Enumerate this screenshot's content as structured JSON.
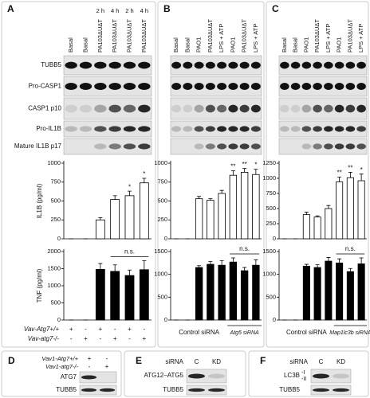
{
  "panels": [
    {
      "label": "A",
      "lanes": [
        "Basal",
        "Basal",
        "PA103ΔUΔT",
        "PA103ΔUΔT",
        "PA103ΔUΔT",
        "PA103ΔUΔT"
      ],
      "times": [
        null,
        null,
        "2 h",
        "4 h",
        "2 h",
        "4 h"
      ],
      "blots": [
        "TUBB5",
        "Pro-CASP1",
        "CASP1 p10",
        "Pro-IL1B",
        "Mature IL1B p17"
      ],
      "genotype": [
        {
          "name": "Vav-Atg7+/+",
          "marks": [
            "+",
            "-",
            "+",
            "-",
            "+",
            "-"
          ]
        },
        {
          "name": "Vav-atg7-/-",
          "marks": [
            "-",
            "+",
            "-",
            "+",
            "-",
            "+"
          ]
        }
      ]
    },
    {
      "label": "B",
      "lanes": [
        "Basal",
        "Basal",
        "PAO1",
        "PA103ΔUΔT",
        "LPS + ATP",
        "PAO1",
        "PA103ΔUΔT",
        "LPS + ATP"
      ],
      "groups": [
        "Control siRNA",
        "Atg5 siRNA"
      ]
    },
    {
      "label": "C",
      "lanes": [
        "Basal",
        "Basal",
        "PAO1",
        "PA103ΔUΔT",
        "LPS + ATP",
        "PAO1",
        "PA103ΔUΔT",
        "LPS + ATP"
      ],
      "groups": [
        "Control siRNA",
        "Map1lc3b siRNA"
      ]
    },
    {
      "label": "D",
      "genotype": [
        {
          "name": "Vav1-Atg7+/+",
          "marks": [
            "+",
            "-"
          ]
        },
        {
          "name": "Vav1-atg7-/-",
          "marks": [
            "-",
            "+"
          ]
        }
      ],
      "blots": [
        "ATG7",
        "TUBB5"
      ]
    },
    {
      "label": "E",
      "header": "siRNA",
      "lanes": [
        "C",
        "KD"
      ],
      "blots": [
        "ATG12–ATG5",
        "TUBB5"
      ]
    },
    {
      "label": "F",
      "header": "siRNA",
      "lanes": [
        "C",
        "KD"
      ],
      "blots": [
        "LC3B",
        "TUBB5"
      ],
      "bands": [
        "-I",
        "-II"
      ]
    }
  ],
  "chart_data": [
    {
      "type": "bar",
      "ylabel": "IL1B (pg/ml)",
      "values": [
        0,
        0,
        250,
        520,
        570,
        740
      ],
      "errors": [
        0,
        0,
        30,
        50,
        60,
        60
      ],
      "significance": [
        null,
        null,
        null,
        null,
        "*",
        "*"
      ],
      "color": "#ffffff",
      "edgecolor": "#000000",
      "ylim": [
        0,
        1000
      ],
      "yticks": [
        0,
        250,
        500,
        750,
        1000
      ]
    },
    {
      "type": "bar",
      "ylabel": "TNF (pg/ml)",
      "values": [
        0,
        0,
        1480,
        1420,
        1300,
        1470
      ],
      "errors": [
        0,
        0,
        170,
        190,
        160,
        260
      ],
      "bracket_label": "n.s.",
      "color": "#000000",
      "edgecolor": "#000000",
      "ylim": [
        0,
        2000
      ],
      "yticks": [
        0,
        500,
        1000,
        1500,
        2000
      ]
    },
    {
      "type": "bar",
      "values": [
        0,
        0,
        530,
        510,
        600,
        840,
        880,
        850
      ],
      "errors": [
        0,
        0,
        30,
        20,
        40,
        60,
        50,
        70
      ],
      "significance": [
        null,
        null,
        null,
        null,
        null,
        "**",
        "**",
        "*"
      ],
      "color": "#ffffff",
      "edgecolor": "#000000",
      "ylim": [
        0,
        1000
      ],
      "yticks": [
        0,
        250,
        500,
        750,
        1000
      ]
    },
    {
      "type": "bar",
      "values": [
        0,
        0,
        1150,
        1220,
        1200,
        1270,
        1080,
        1200
      ],
      "errors": [
        0,
        0,
        40,
        60,
        100,
        90,
        70,
        120
      ],
      "bracket_label": "n.s.",
      "color": "#000000",
      "edgecolor": "#000000",
      "ylim": [
        0,
        1500
      ],
      "yticks": [
        0,
        500,
        1000,
        1500
      ]
    },
    {
      "type": "bar",
      "values": [
        0,
        0,
        400,
        360,
        500,
        940,
        1010,
        960
      ],
      "errors": [
        0,
        0,
        40,
        20,
        50,
        80,
        90,
        110
      ],
      "significance": [
        null,
        null,
        null,
        null,
        null,
        "**",
        "**",
        "*"
      ],
      "color": "#ffffff",
      "edgecolor": "#000000",
      "ylim": [
        0,
        1250
      ],
      "yticks": [
        0,
        250,
        500,
        750,
        1000,
        1250
      ]
    },
    {
      "type": "bar",
      "values": [
        0,
        0,
        1180,
        1150,
        1290,
        1250,
        1060,
        1230
      ],
      "errors": [
        0,
        0,
        40,
        60,
        80,
        90,
        70,
        130
      ],
      "bracket_label": "n.s.",
      "color": "#000000",
      "edgecolor": "#000000",
      "ylim": [
        0,
        1500
      ],
      "yticks": [
        0,
        500,
        1000,
        1500
      ]
    }
  ]
}
